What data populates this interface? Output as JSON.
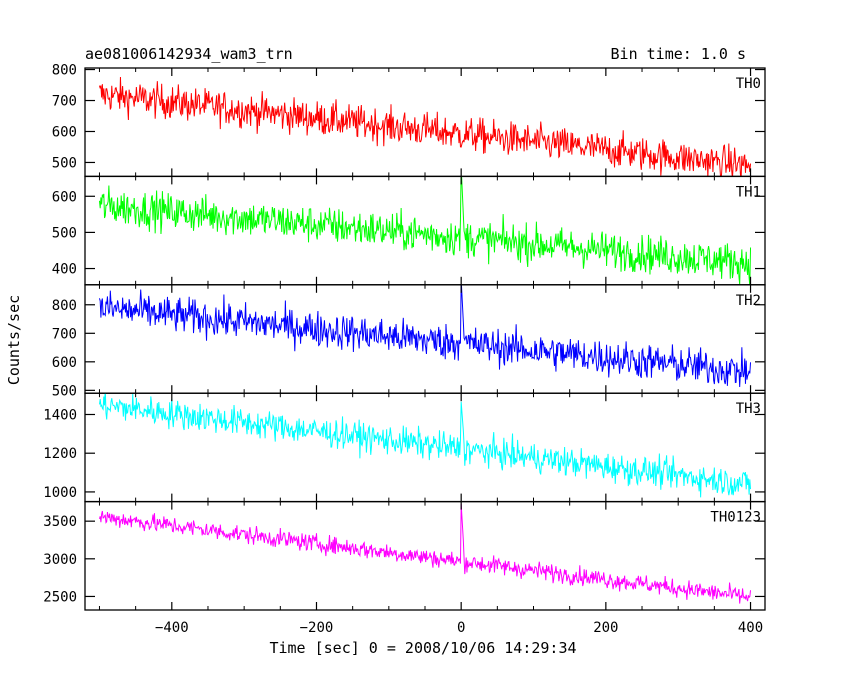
{
  "chart_data": {
    "type": "line",
    "title": "ae081006142934_wam3_trn",
    "bin_time_label": "Bin time: 1.0 s",
    "xlabel": "Time [sec] 0 = 2008/10/06 14:29:34",
    "ylabel": "Counts/sec",
    "xlim": [
      -520,
      420
    ],
    "x_range": [
      -500,
      400
    ],
    "x_ticks": [
      -400,
      -200,
      0,
      200,
      400
    ],
    "x_tick_labels": [
      "−400",
      "−200",
      "0",
      "200",
      "400"
    ],
    "grid": false,
    "panels": [
      {
        "name": "TH0",
        "color": "#ff0000",
        "ylim": [
          455,
          805
        ],
        "y_ticks": [
          500,
          600,
          700,
          800
        ],
        "start": 720,
        "end": 490,
        "noise": 28,
        "peak": 40,
        "spike": 0
      },
      {
        "name": "TH1",
        "color": "#00ff00",
        "ylim": [
          355,
          655
        ],
        "y_ticks": [
          400,
          500,
          600
        ],
        "start": 575,
        "end": 415,
        "noise": 26,
        "peak": 200,
        "spike": 180
      },
      {
        "name": "TH2",
        "color": "#0000ff",
        "ylim": [
          490,
          870
        ],
        "y_ticks": [
          500,
          600,
          700,
          800
        ],
        "start": 790,
        "end": 565,
        "noise": 32,
        "peak": 230,
        "spike": 200
      },
      {
        "name": "TH3",
        "color": "#00ffff",
        "ylim": [
          950,
          1510
        ],
        "y_ticks": [
          1000,
          1200,
          1400
        ],
        "start": 1450,
        "end": 1040,
        "noise": 38,
        "peak": 240,
        "spike": 200
      },
      {
        "name": "TH0123",
        "color": "#ff00ff",
        "ylim": [
          2320,
          3760
        ],
        "y_ticks": [
          2500,
          3000,
          3500
        ],
        "start": 3560,
        "end": 2490,
        "noise": 60,
        "peak": 700,
        "spike": 650
      }
    ]
  }
}
